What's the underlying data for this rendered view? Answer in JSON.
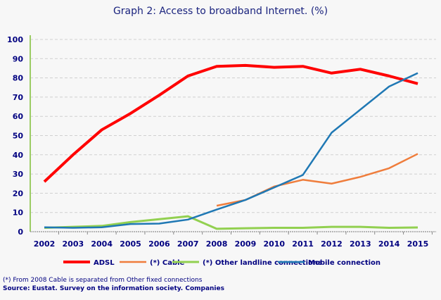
{
  "chart_data": {
    "type": "line",
    "title": "Graph 2: Access to broadband Internet. (%)",
    "x": [
      "2002",
      "2003",
      "2004",
      "2005",
      "2006",
      "2007",
      "2008",
      "2009",
      "2010",
      "2011",
      "2012",
      "2013",
      "2014",
      "2015"
    ],
    "ylim": [
      0,
      100
    ],
    "yticks": [
      0,
      10,
      20,
      30,
      40,
      50,
      60,
      70,
      80,
      90,
      100
    ],
    "grid": true,
    "legend_position": "bottom",
    "series": [
      {
        "name": "ADSL",
        "color": "#ff0000",
        "width": 4,
        "values": [
          26,
          40,
          53,
          61.5,
          71,
          81,
          86,
          86.5,
          85.5,
          86,
          82.5,
          84.5,
          81,
          77
        ]
      },
      {
        "name": "(*) Cable",
        "color": "#ef7d3c",
        "width": 2.5,
        "values": [
          null,
          null,
          null,
          null,
          null,
          null,
          13.5,
          16.5,
          23.5,
          27,
          25,
          28.5,
          33,
          40.5
        ]
      },
      {
        "name": "(*) Other landline connections",
        "color": "#92d050",
        "width": 3,
        "values": [
          2,
          2.5,
          3,
          5,
          6.5,
          8,
          1.5,
          1.8,
          2,
          2,
          2.5,
          2.5,
          2,
          2.2
        ]
      },
      {
        "name": "Mobile connection",
        "color": "#1f78b4",
        "width": 2.5,
        "values": [
          2.3,
          2,
          2.3,
          4,
          4.2,
          6.3,
          11.5,
          16.5,
          23,
          29.5,
          51.5,
          63.5,
          75.5,
          82.5
        ]
      }
    ]
  },
  "footnote": "(*) From 2008 Cable is separated from Other fixed connections",
  "source": "Source: Eustat. Survey on the information society. Companies"
}
